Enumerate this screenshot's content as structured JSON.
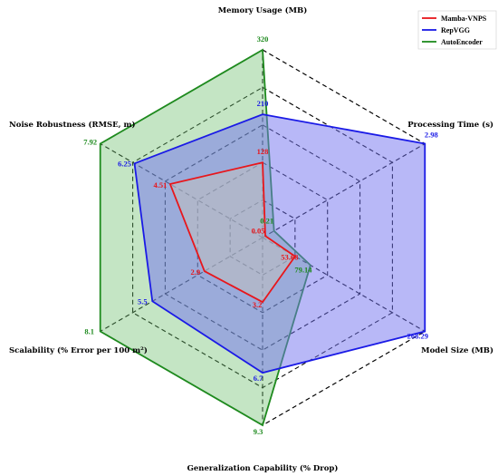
{
  "chart_data": {
    "type": "radar",
    "axes": [
      {
        "label": "Memory Usage (MB)",
        "max": 320
      },
      {
        "label": "Processing Time (s)",
        "max": 2.98
      },
      {
        "label": "Model Size (MB)",
        "max": 268.29
      },
      {
        "label": "Generalization Capability (% Drop)",
        "max": 9.3
      },
      {
        "label": "Scalability (% Error per 100 m²)",
        "max": 8.1
      },
      {
        "label": "Noise Robustness (RMSE, m)",
        "max": 7.92
      }
    ],
    "grid_levels": 5,
    "grid_style": "dashed",
    "legend_position": "top-right",
    "series": [
      {
        "name": "Mamba-VNPS",
        "color": "#e8161b",
        "fill": "#bfbfbf",
        "values": [
          128,
          0.05,
          53.68,
          3.2,
          2.9,
          4.51
        ],
        "labels": [
          "128",
          "0.05",
          "53.68",
          "3.2",
          "2.9",
          "4.51"
        ]
      },
      {
        "name": "RepVGG",
        "color": "#1a1ae6",
        "fill": "#7272f0",
        "values": [
          210,
          2.98,
          268.29,
          6.7,
          5.5,
          6.25
        ],
        "labels": [
          "210",
          "2.98",
          "268.29",
          "6.7",
          "5.5",
          "6.25"
        ]
      },
      {
        "name": "AutoEncoder",
        "color": "#1e8a1e",
        "fill": "#6bbf6b",
        "values": [
          320,
          0.21,
          79.14,
          9.3,
          8.1,
          7.92
        ],
        "labels": [
          "320",
          "0.21",
          "79.14",
          "9.3",
          "8.1",
          "7.92"
        ]
      }
    ]
  }
}
